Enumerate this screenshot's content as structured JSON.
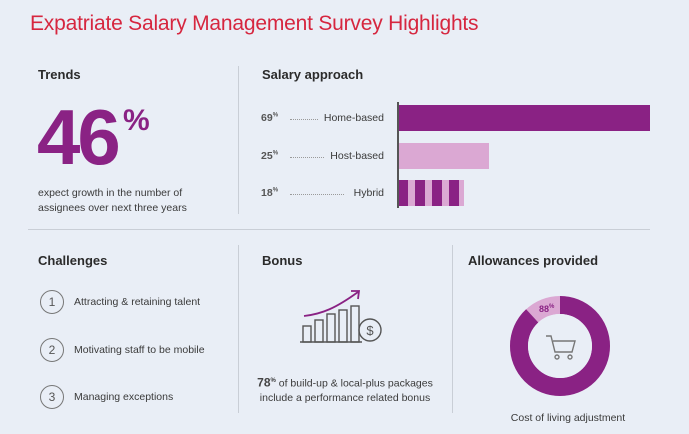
{
  "title": "Expatriate Salary Management Survey Highlights",
  "colors": {
    "title": "#d6263f",
    "accent": "#8a2284",
    "light": "#dba8d3"
  },
  "trends": {
    "heading": "Trends",
    "value": "46",
    "percent_sign": "%",
    "desc_line1": "expect growth in the number of",
    "desc_line2": "assignees over next three years"
  },
  "salary": {
    "heading": "Salary approach",
    "items": [
      {
        "pct": "69",
        "sign": "%",
        "label": "Home-based",
        "value": 69,
        "style": "solid"
      },
      {
        "pct": "25",
        "sign": "%",
        "label": "Host-based",
        "value": 25,
        "style": "light"
      },
      {
        "pct": "18",
        "sign": "%",
        "label": "Hybrid",
        "value": 18,
        "style": "striped"
      }
    ]
  },
  "challenges": {
    "heading": "Challenges",
    "items": [
      {
        "num": "1",
        "text": "Attracting & retaining talent"
      },
      {
        "num": "2",
        "text": "Motivating staff to be mobile"
      },
      {
        "num": "3",
        "text": "Managing exceptions"
      }
    ]
  },
  "bonus": {
    "heading": "Bonus",
    "pct": "78",
    "sign": "%",
    "line1": " of build-up & local-plus packages",
    "line2": "include a performance related bonus",
    "icon": "growth-chart-dollar-icon"
  },
  "allowances": {
    "heading": "Allowances provided",
    "pct": "88",
    "sign": "%",
    "value": 88,
    "caption": "Cost of living adjustment",
    "icon": "shopping-cart-icon"
  }
}
